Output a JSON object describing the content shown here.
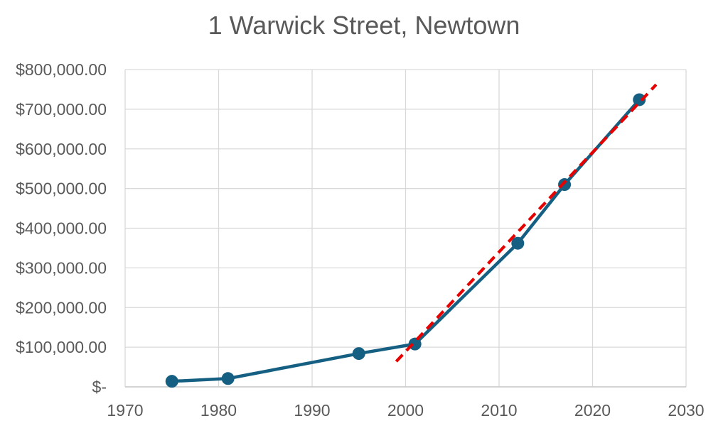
{
  "chart_data": {
    "type": "line",
    "title": "1 Warwick Street, Newtown",
    "x": [
      1975,
      1981,
      1995,
      2001,
      2012,
      2017,
      2025
    ],
    "values": [
      14000,
      21000,
      84000,
      108000,
      362000,
      510000,
      724000
    ],
    "trendline": {
      "style": "dashed-linear",
      "x": [
        1999,
        2026.8
      ],
      "values": [
        64000,
        762000
      ]
    },
    "xlim": [
      1970,
      2030
    ],
    "ylim": [
      0,
      800000
    ],
    "x_ticks": {
      "values": [
        1970,
        1980,
        1990,
        2000,
        2010,
        2020,
        2030
      ],
      "labels": [
        "1970",
        "1980",
        "1990",
        "2000",
        "2010",
        "2020",
        "2030"
      ]
    },
    "y_ticks": {
      "values": [
        0,
        100000,
        200000,
        300000,
        400000,
        500000,
        600000,
        700000,
        800000
      ],
      "labels": [
        "$-",
        "$100,000.00",
        "$200,000.00",
        "$300,000.00",
        "$400,000.00",
        "$500,000.00",
        "$600,000.00",
        "$700,000.00",
        "$800,000.00"
      ]
    },
    "grid": true,
    "legend": "none",
    "colors": {
      "series": "#156082",
      "trendline": "#E60000",
      "gridline": "#D9D9D9",
      "axis_line": "#C6C6C6",
      "text": "#595959",
      "title": "#595959"
    }
  }
}
